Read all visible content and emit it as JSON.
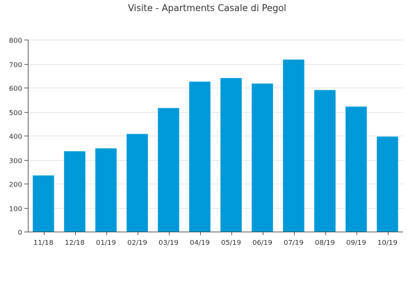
{
  "chart_data": {
    "type": "bar",
    "title": "Visite - Apartments Casale di Pegol",
    "xlabel": "",
    "ylabel": "",
    "categories": [
      "11/18",
      "12/18",
      "01/19",
      "02/19",
      "03/19",
      "04/19",
      "05/19",
      "06/19",
      "07/19",
      "08/19",
      "09/19",
      "10/19"
    ],
    "values": [
      234,
      335,
      347,
      407,
      515,
      625,
      640,
      617,
      717,
      590,
      521,
      396
    ],
    "ylim": [
      0,
      800
    ],
    "yticks": [
      0,
      100,
      200,
      300,
      400,
      500,
      600,
      700,
      800
    ],
    "grid": true,
    "legend": "none",
    "bar_color": "#0099d8"
  }
}
